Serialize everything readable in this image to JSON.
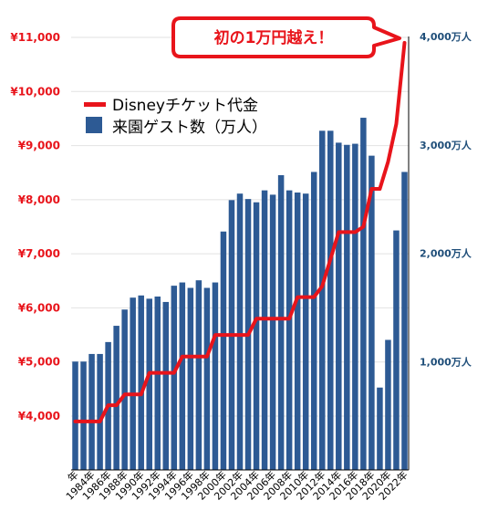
{
  "colors": {
    "price_line": "#e8141b",
    "visitor_bar": "#2d5a94",
    "left_axis_text": "#e8141b",
    "right_axis_text": "#1f4e79",
    "grid": "#e2e2e2",
    "callout_border": "#e8141b"
  },
  "callout": {
    "text": "初の1万円越え！"
  },
  "chart_data": {
    "type": "bar+line",
    "x_tick_labels": [
      "年",
      "1984年",
      "1986年",
      "1988年",
      "1990年",
      "1992年",
      "1994年",
      "1996年",
      "1998年",
      "2000年",
      "2002年",
      "2004年",
      "2006年",
      "2008年",
      "2010年",
      "2012年",
      "2014年",
      "2016年",
      "2018年",
      "2020年",
      "2022年"
    ],
    "years": [
      1983,
      1984,
      1985,
      1986,
      1987,
      1988,
      1989,
      1990,
      1991,
      1992,
      1993,
      1994,
      1995,
      1996,
      1997,
      1998,
      1999,
      2000,
      2001,
      2002,
      2003,
      2004,
      2005,
      2006,
      2007,
      2008,
      2009,
      2010,
      2011,
      2012,
      2013,
      2014,
      2015,
      2016,
      2017,
      2018,
      2019,
      2020,
      2021,
      2022,
      2023
    ],
    "series": [
      {
        "name": "Disneyチケット代金",
        "type": "line",
        "axis": "left",
        "values": [
          3900,
          3900,
          3900,
          3900,
          4200,
          4200,
          4400,
          4400,
          4400,
          4800,
          4800,
          4800,
          4800,
          5100,
          5100,
          5100,
          5100,
          5500,
          5500,
          5500,
          5500,
          5500,
          5800,
          5800,
          5800,
          5800,
          5800,
          6200,
          6200,
          6200,
          6400,
          6900,
          7400,
          7400,
          7400,
          7500,
          8200,
          8200,
          8700,
          9400,
          10900
        ]
      },
      {
        "name": "来園ゲスト数（万人）",
        "type": "bar",
        "axis": "right",
        "values": [
          1000,
          1000,
          1070,
          1070,
          1180,
          1330,
          1480,
          1590,
          1610,
          1580,
          1600,
          1550,
          1700,
          1730,
          1680,
          1750,
          1680,
          1730,
          2200,
          2490,
          2550,
          2500,
          2470,
          2580,
          2540,
          2720,
          2580,
          2560,
          2550,
          2750,
          3130,
          3130,
          3020,
          3000,
          3010,
          3250,
          2900,
          760,
          1200,
          2210,
          2750
        ]
      }
    ],
    "y_left": {
      "ticks": [
        "¥4,000",
        "¥5,000",
        "¥6,000",
        "¥7,000",
        "¥8,000",
        "¥9,000",
        "¥10,000",
        "¥11,000"
      ],
      "min": 3000,
      "max": 11000
    },
    "y_right": {
      "ticks": [
        "1,000万人",
        "2,000万人",
        "3,000万人",
        "4,000万人"
      ],
      "min": 0,
      "max": 4000
    },
    "grid": true,
    "legend": "top-left"
  }
}
